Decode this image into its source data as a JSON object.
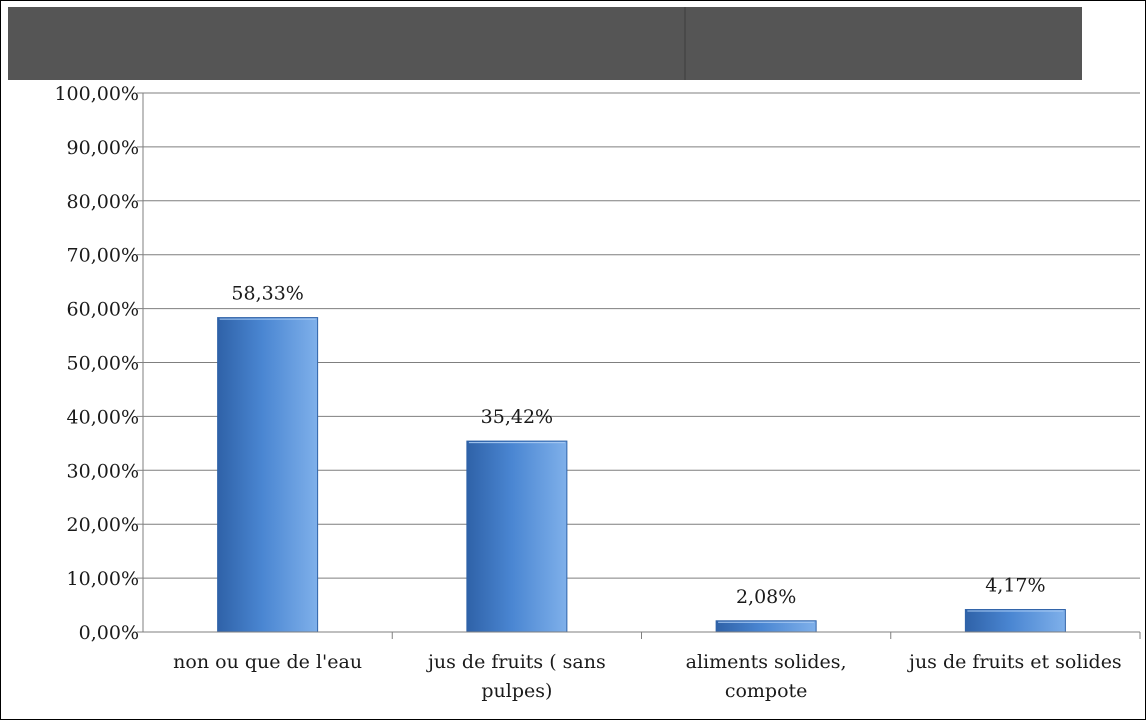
{
  "chart_data": {
    "type": "bar",
    "title": "",
    "xlabel": "",
    "ylabel": "",
    "categories": [
      [
        "non ou que de l'eau"
      ],
      [
        "jus de fruits ( sans",
        "pulpes)"
      ],
      [
        "aliments solides,",
        "compote"
      ],
      [
        "jus de fruits et solides"
      ]
    ],
    "values": [
      58.33,
      35.42,
      2.08,
      4.17
    ],
    "data_labels": [
      "58,33%",
      "35,42%",
      "2,08%",
      "4,17%"
    ],
    "ylim": [
      0,
      100
    ],
    "yticks": [
      0,
      10,
      20,
      30,
      40,
      50,
      60,
      70,
      80,
      90,
      100
    ],
    "ytick_labels": [
      "0,00%",
      "10,00%",
      "20,00%",
      "30,00%",
      "40,00%",
      "50,00%",
      "60,00%",
      "70,00%",
      "80,00%",
      "90,00%",
      "100,00%"
    ],
    "grid": true,
    "legend": "none",
    "colors": {
      "bar_dark": "#2f62a8",
      "bar_mid": "#4a86d2",
      "bar_light": "#7fb0ea",
      "header_bar": "#555555",
      "grid": "#7f7f7f",
      "axis": "#7f7f7f"
    }
  }
}
